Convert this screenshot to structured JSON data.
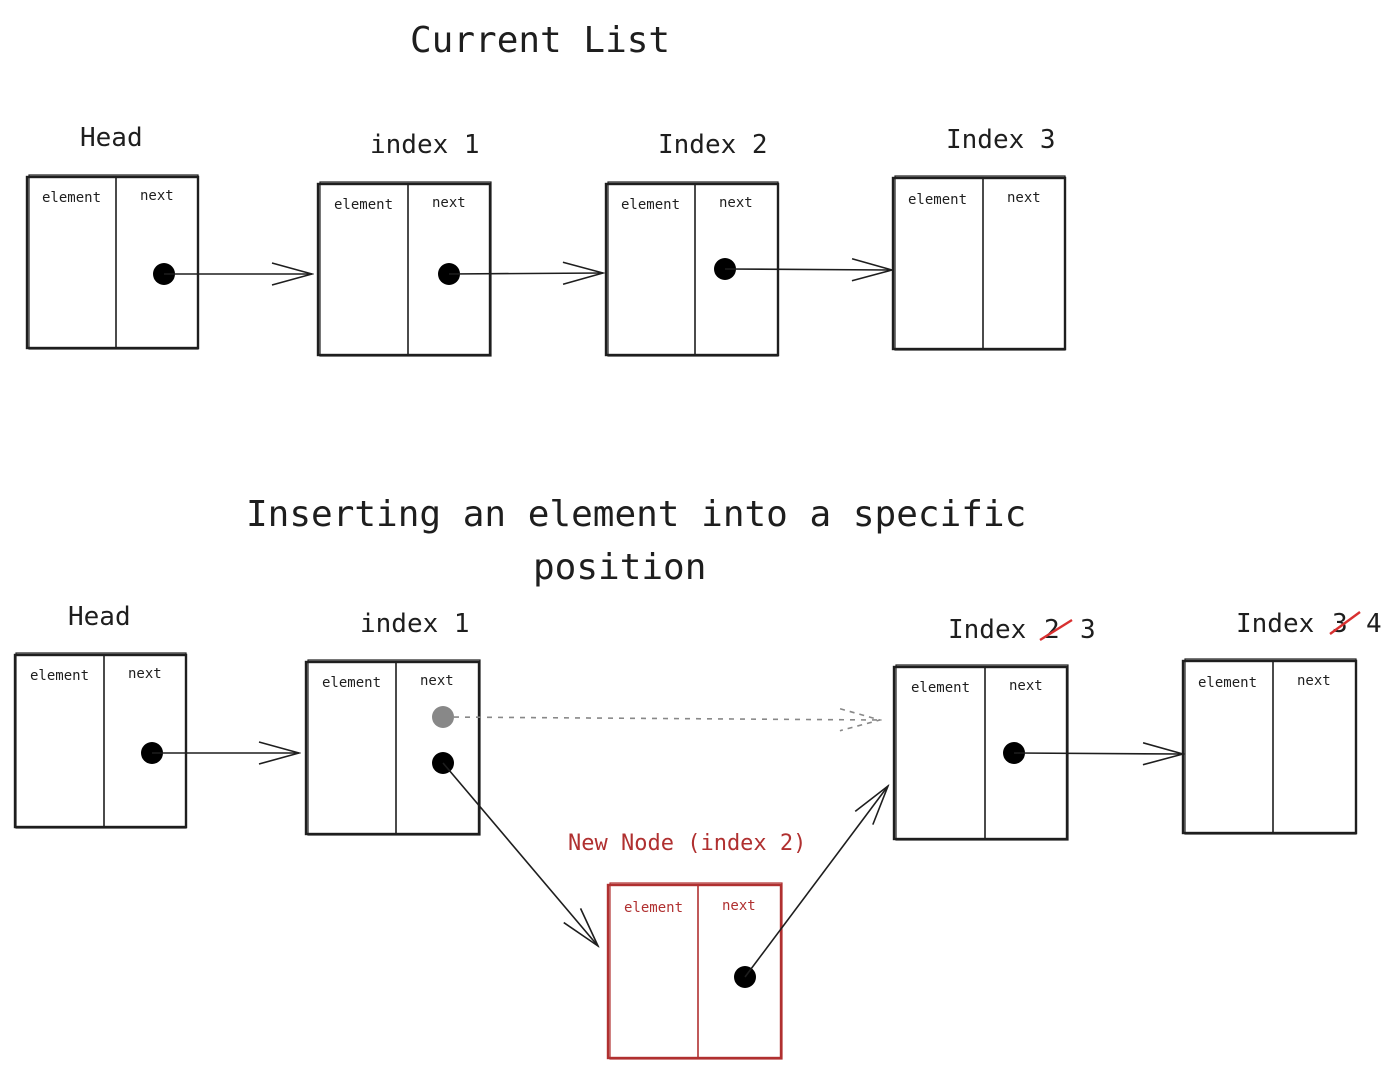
{
  "top": {
    "title": "Current List",
    "nodes": [
      {
        "label": "Head",
        "element": "element",
        "next": "next"
      },
      {
        "label": "index 1",
        "element": "element",
        "next": "next"
      },
      {
        "label": "Index 2",
        "element": "element",
        "next": "next"
      },
      {
        "label": "Index 3",
        "element": "element",
        "next": "next"
      }
    ]
  },
  "bottom": {
    "title_line1": "Inserting an element into a specific",
    "title_line2": "position",
    "nodes": [
      {
        "label": "Head",
        "element": "element",
        "next": "next"
      },
      {
        "label": "index 1",
        "element": "element",
        "next": "next"
      },
      {
        "label_prefix": "Index",
        "old_index": "2",
        "new_index": "3",
        "element": "element",
        "next": "next"
      },
      {
        "label_prefix": "Index",
        "old_index": "3",
        "new_index": "4",
        "element": "element",
        "next": "next"
      }
    ],
    "new_node": {
      "label": "New Node (index 2)",
      "element": "element",
      "next": "next",
      "color": "#b03030"
    },
    "strike_color": "#d83030",
    "old_pointer_color": "#888888"
  }
}
